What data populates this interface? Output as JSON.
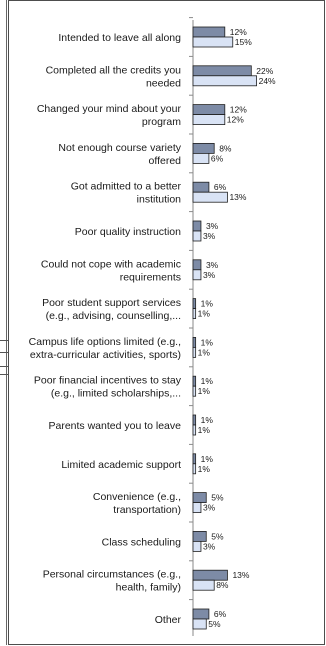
{
  "chart_data": {
    "type": "bar",
    "orientation": "horizontal",
    "categories": [
      [
        "Intended to leave all along"
      ],
      [
        "Completed all the credits you",
        "needed"
      ],
      [
        "Changed your mind about your",
        "program"
      ],
      [
        "Not enough course variety",
        "offered"
      ],
      [
        "Got admitted to a better",
        "institution"
      ],
      [
        "Poor quality instruction"
      ],
      [
        "Could not cope with academic",
        "requirements"
      ],
      [
        "Poor student support services",
        "(e.g., advising, counselling,..."
      ],
      [
        "Campus life options limited (e.g.,",
        "extra-curricular activities, sports)"
      ],
      [
        "Poor financial incentives to stay",
        "(e.g., limited scholarships,..."
      ],
      [
        "Parents wanted you to leave"
      ],
      [
        "Limited academic support"
      ],
      [
        "Convenience (e.g.,",
        "transportation)"
      ],
      [
        "Class scheduling"
      ],
      [
        "Personal circumstances (e.g.,",
        "health, family)"
      ],
      [
        "Other"
      ]
    ],
    "series": [
      {
        "values": [
          12,
          22,
          12,
          8,
          6,
          3,
          3,
          1,
          1,
          1,
          1,
          1,
          5,
          5,
          13,
          6
        ],
        "labels": [
          "12%",
          "22%",
          "12%",
          "8%",
          "6%",
          "3%",
          "3%",
          "1%",
          "1%",
          "1%",
          "1%",
          "1%",
          "5%",
          "5%",
          "13%",
          "6%"
        ]
      },
      {
        "values": [
          15,
          24,
          12,
          6,
          13,
          3,
          3,
          1,
          1,
          1,
          1,
          1,
          3,
          3,
          8,
          5
        ],
        "labels": [
          "15%",
          "24%",
          "12%",
          "6%",
          "13%",
          "3%",
          "3%",
          "1%",
          "1%",
          "1%",
          "1%",
          "1%",
          "3%",
          "3%",
          "8%",
          "5%"
        ]
      }
    ],
    "colors": [
      "#7d8ba6",
      "#d9e3f5"
    ],
    "bar_stroke": "#1f1f1f",
    "xlim": [
      0,
      27
    ],
    "grid": false,
    "legend": "none"
  }
}
